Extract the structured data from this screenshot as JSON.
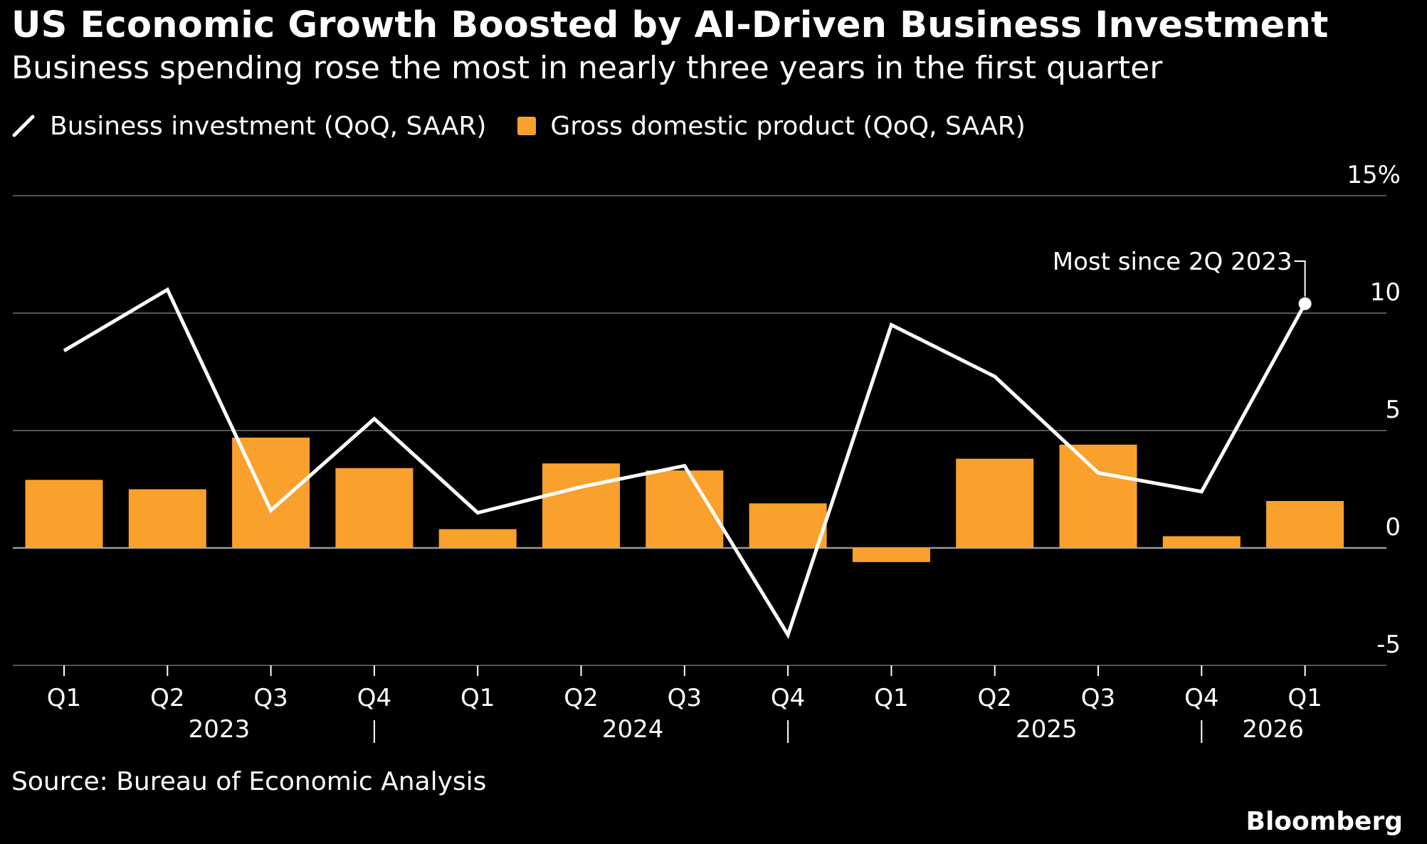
{
  "title": "US Economic Growth Boosted by AI-Driven Business Investment",
  "subtitle": "Business spending rose the most in nearly three years in the first quarter",
  "legend": {
    "line_label": "Business investment (QoQ, SAAR)",
    "bar_label": "Gross domestic product (QoQ, SAAR)",
    "line_icon": "line-swatch",
    "bar_icon": "square-swatch"
  },
  "source": "Source: Bureau of Economic Analysis",
  "brand": "Bloomberg",
  "colors": {
    "background": "#000000",
    "bar": "#f9a12c",
    "line": "#ffffff",
    "grid": "#555555",
    "text": "#ffffff"
  },
  "chart_data": {
    "type": "bar",
    "categories": [
      "Q1",
      "Q2",
      "Q3",
      "Q4",
      "Q1",
      "Q2",
      "Q3",
      "Q4",
      "Q1",
      "Q2",
      "Q3",
      "Q4",
      "Q1"
    ],
    "years": [
      {
        "label": "2023",
        "first": 0,
        "last": 3
      },
      {
        "label": "2024",
        "first": 4,
        "last": 7
      },
      {
        "label": "2025",
        "first": 8,
        "last": 11
      },
      {
        "label": "2026",
        "first": 12,
        "last": 12
      }
    ],
    "series": [
      {
        "name": "Gross domestic product (QoQ, SAAR)",
        "type": "bar",
        "values": [
          2.9,
          2.5,
          4.7,
          3.4,
          0.8,
          3.6,
          3.3,
          1.9,
          -0.6,
          3.8,
          4.4,
          0.5,
          2.0
        ]
      },
      {
        "name": "Business investment (QoQ, SAAR)",
        "type": "line",
        "values": [
          8.4,
          11.0,
          1.6,
          5.5,
          1.5,
          2.6,
          3.5,
          -3.7,
          9.5,
          7.3,
          3.2,
          2.4,
          10.4
        ]
      }
    ],
    "y_ticks": [
      -5,
      0,
      5,
      10,
      15
    ],
    "y_tick_labels": [
      "-5",
      "0",
      "5",
      "10",
      "15%"
    ],
    "ylim": [
      -5,
      15
    ],
    "grid": true,
    "y_axis_position": "right",
    "annotation": {
      "text": "Most since 2Q 2023",
      "series_index": 1,
      "point_index": 12
    }
  }
}
